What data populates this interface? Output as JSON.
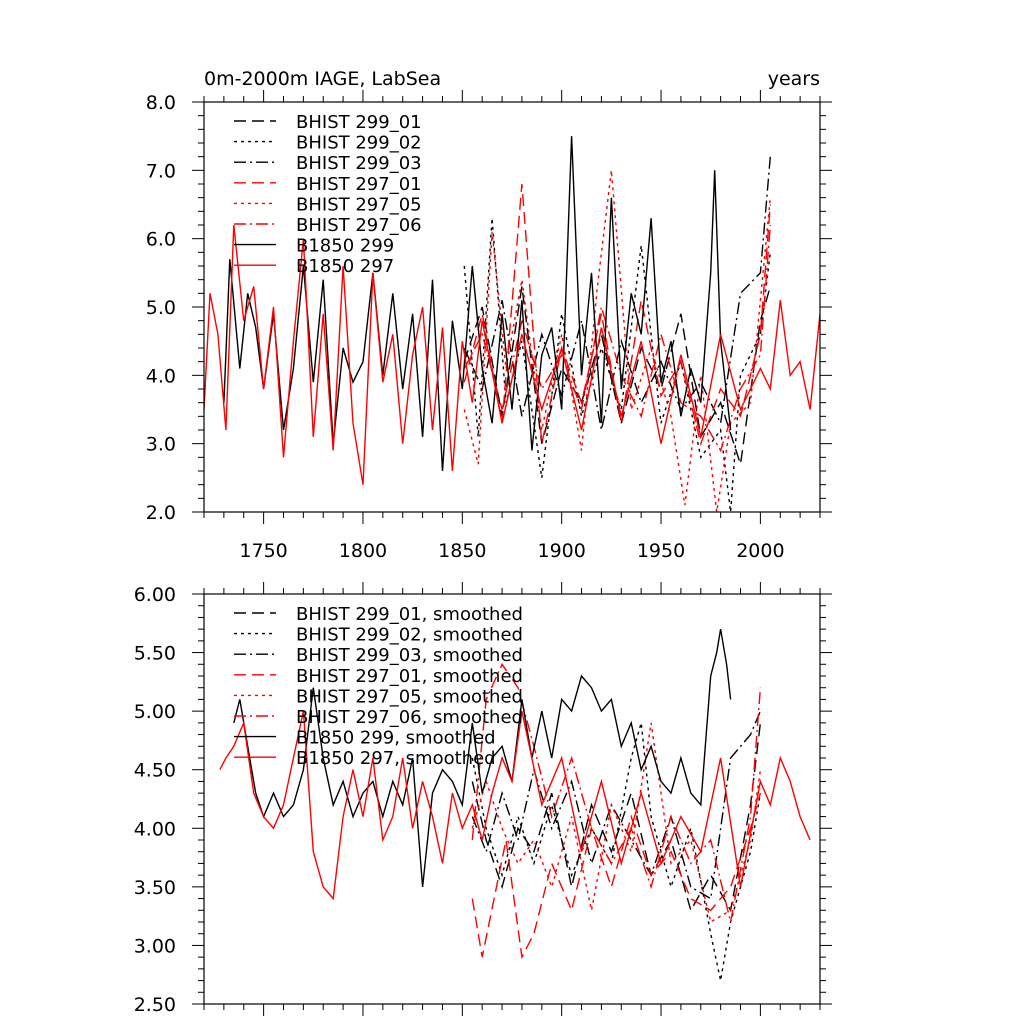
{
  "chart_data": [
    {
      "type": "line",
      "title_left": "0m-2000m IAGE, LabSea",
      "title_right": "years",
      "xlabel": "",
      "ylabel": "",
      "xlim": [
        1720,
        2030
      ],
      "ylim": [
        2.0,
        8.0
      ],
      "xticks": [
        1750,
        1800,
        1850,
        1900,
        1950,
        2000
      ],
      "xtick_labels": [
        "1750",
        "1800",
        "1850",
        "1900",
        "1950",
        "2000"
      ],
      "yticks": [
        2.0,
        3.0,
        4.0,
        5.0,
        6.0,
        7.0,
        8.0
      ],
      "ytick_labels": [
        "2.0",
        "3.0",
        "4.0",
        "5.0",
        "6.0",
        "7.0",
        "8.0"
      ],
      "legend_position": "top-left",
      "series": [
        {
          "name": "BHIST 299_01",
          "color": "#000000",
          "dash": "dash",
          "x": [
            1851,
            1860,
            1870,
            1880,
            1890,
            1900,
            1910,
            1920,
            1930,
            1940,
            1950,
            1960,
            1970,
            1980,
            1990,
            2000,
            2005
          ],
          "y": [
            4.2,
            5.0,
            3.4,
            5.3,
            3.0,
            4.1,
            3.6,
            4.6,
            3.3,
            4.4,
            3.8,
            4.9,
            3.1,
            3.6,
            2.7,
            4.8,
            5.3
          ]
        },
        {
          "name": "BHIST 299_02",
          "color": "#000000",
          "dash": "dot",
          "x": [
            1851,
            1858,
            1865,
            1872,
            1880,
            1890,
            1900,
            1910,
            1920,
            1930,
            1940,
            1950,
            1960,
            1970,
            1980,
            1985,
            1990,
            2000,
            2005
          ],
          "y": [
            5.6,
            3.1,
            6.3,
            3.6,
            4.5,
            2.5,
            4.9,
            3.4,
            4.4,
            3.5,
            5.9,
            3.3,
            4.2,
            2.8,
            3.2,
            2.0,
            4.0,
            4.6,
            5.8
          ]
        },
        {
          "name": "BHIST 299_03",
          "color": "#000000",
          "dash": "dashdot",
          "x": [
            1851,
            1860,
            1870,
            1880,
            1890,
            1900,
            1910,
            1920,
            1930,
            1940,
            1950,
            1960,
            1970,
            1980,
            1990,
            2000,
            2005
          ],
          "y": [
            4.4,
            3.8,
            5.1,
            3.4,
            4.6,
            3.7,
            4.8,
            3.2,
            4.5,
            3.6,
            4.2,
            3.5,
            3.9,
            3.3,
            5.2,
            5.5,
            7.2
          ]
        },
        {
          "name": "BHIST 297_01",
          "color": "#ff0000",
          "dash": "dash",
          "x": [
            1851,
            1860,
            1870,
            1880,
            1890,
            1900,
            1910,
            1920,
            1930,
            1940,
            1950,
            1960,
            1970,
            1980,
            1990,
            2000,
            2005
          ],
          "y": [
            3.9,
            4.9,
            3.3,
            6.8,
            3.0,
            4.4,
            3.6,
            4.9,
            3.3,
            5.1,
            3.7,
            4.2,
            3.0,
            3.8,
            3.4,
            4.6,
            6.5
          ]
        },
        {
          "name": "BHIST 297_05",
          "color": "#ff0000",
          "dash": "dot",
          "x": [
            1851,
            1858,
            1865,
            1872,
            1880,
            1890,
            1900,
            1910,
            1918,
            1925,
            1935,
            1945,
            1955,
            1962,
            1970,
            1978,
            1985,
            1995,
            2005
          ],
          "y": [
            3.5,
            2.7,
            6.1,
            4.1,
            5.4,
            3.2,
            4.6,
            2.9,
            5.3,
            7.0,
            3.5,
            4.4,
            3.4,
            2.1,
            4.0,
            2.0,
            3.3,
            3.6,
            6.6
          ]
        },
        {
          "name": "BHIST 297_06",
          "color": "#ff0000",
          "dash": "dashdot",
          "x": [
            1851,
            1860,
            1870,
            1880,
            1890,
            1900,
            1910,
            1920,
            1930,
            1940,
            1950,
            1960,
            1970,
            1980,
            1990,
            2000,
            2005
          ],
          "y": [
            4.1,
            4.6,
            3.5,
            4.8,
            3.8,
            4.3,
            3.5,
            5.0,
            4.0,
            3.4,
            4.6,
            3.6,
            3.4,
            2.9,
            3.8,
            4.3,
            6.2
          ]
        },
        {
          "name": "B1850 299",
          "color": "#000000",
          "dash": "solid",
          "x": [
            1730,
            1733,
            1738,
            1742,
            1746,
            1750,
            1755,
            1760,
            1765,
            1770,
            1775,
            1780,
            1785,
            1790,
            1795,
            1800,
            1805,
            1810,
            1815,
            1820,
            1825,
            1830,
            1835,
            1840,
            1845,
            1850,
            1855,
            1860,
            1865,
            1870,
            1875,
            1880,
            1885,
            1890,
            1895,
            1900,
            1905,
            1910,
            1915,
            1920,
            1925,
            1930,
            1935,
            1940,
            1945,
            1950,
            1955,
            1960,
            1965,
            1970,
            1975,
            1977,
            1980,
            1985
          ],
          "y": [
            3.6,
            5.7,
            4.1,
            5.2,
            4.7,
            3.8,
            4.9,
            3.2,
            4.1,
            5.6,
            3.9,
            5.4,
            3.0,
            4.4,
            3.9,
            4.2,
            5.5,
            4.0,
            5.2,
            3.8,
            4.9,
            3.1,
            5.4,
            2.6,
            4.8,
            3.8,
            5.6,
            4.1,
            3.3,
            4.9,
            3.5,
            5.1,
            2.9,
            4.3,
            4.7,
            3.5,
            7.5,
            4.0,
            5.5,
            3.3,
            6.6,
            3.8,
            5.2,
            4.6,
            6.3,
            3.9,
            4.5,
            3.4,
            4.1,
            3.6,
            5.5,
            7.0,
            4.5,
            3.2
          ]
        },
        {
          "name": "B1850 297",
          "color": "#ff0000",
          "dash": "solid",
          "x": [
            1720,
            1723,
            1727,
            1731,
            1735,
            1740,
            1745,
            1750,
            1755,
            1760,
            1765,
            1770,
            1775,
            1780,
            1785,
            1790,
            1795,
            1800,
            1805,
            1810,
            1815,
            1820,
            1825,
            1830,
            1835,
            1840,
            1845,
            1850,
            1855,
            1860,
            1870,
            1880,
            1890,
            1900,
            1910,
            1920,
            1930,
            1940,
            1950,
            1960,
            1970,
            1980,
            1990,
            2000,
            2005,
            2010,
            2015,
            2020,
            2025,
            2030
          ],
          "y": [
            3.5,
            5.2,
            4.6,
            3.2,
            6.2,
            4.8,
            5.3,
            3.8,
            5.0,
            2.8,
            4.5,
            6.0,
            3.1,
            4.9,
            2.9,
            5.6,
            3.3,
            2.4,
            5.5,
            3.9,
            4.6,
            3.0,
            4.3,
            5.0,
            3.2,
            4.7,
            2.6,
            4.5,
            3.6,
            4.8,
            3.3,
            4.6,
            3.5,
            4.4,
            3.2,
            4.7,
            3.4,
            4.5,
            3.0,
            4.3,
            3.1,
            4.6,
            3.5,
            4.1,
            3.8,
            5.1,
            4.0,
            4.2,
            3.5,
            4.9
          ]
        }
      ]
    },
    {
      "type": "line",
      "title": "",
      "xlabel": "",
      "ylabel": "",
      "xlim": [
        1720,
        2030
      ],
      "ylim": [
        2.5,
        6.0
      ],
      "xticks": [
        1750,
        1800,
        1850,
        1900,
        1950,
        2000
      ],
      "yticks": [
        2.5,
        3.0,
        3.5,
        4.0,
        4.5,
        5.0,
        5.5,
        6.0
      ],
      "ytick_labels": [
        "2.50",
        "3.00",
        "3.50",
        "4.00",
        "4.50",
        "5.00",
        "5.50",
        "6.00"
      ],
      "legend_position": "top-left",
      "series": [
        {
          "name": "BHIST 299_01, smoothed",
          "color": "#000000",
          "dash": "dash",
          "x": [
            1855,
            1862,
            1870,
            1878,
            1886,
            1895,
            1905,
            1915,
            1925,
            1935,
            1945,
            1955,
            1965,
            1975,
            1985,
            1995,
            2000
          ],
          "y": [
            4.4,
            3.9,
            3.5,
            4.0,
            3.8,
            4.3,
            3.5,
            4.2,
            3.8,
            4.3,
            3.6,
            3.9,
            3.3,
            3.6,
            3.3,
            4.2,
            4.9
          ]
        },
        {
          "name": "BHIST 299_02, smoothed",
          "color": "#000000",
          "dash": "dot",
          "x": [
            1855,
            1862,
            1870,
            1878,
            1886,
            1895,
            1905,
            1915,
            1925,
            1935,
            1940,
            1945,
            1955,
            1965,
            1975,
            1980,
            1985,
            1995,
            2000
          ],
          "y": [
            4.6,
            4.0,
            3.6,
            4.1,
            3.7,
            4.2,
            3.6,
            4.0,
            3.7,
            4.6,
            4.9,
            4.1,
            3.5,
            4.0,
            3.1,
            2.7,
            3.2,
            3.8,
            4.3
          ]
        },
        {
          "name": "BHIST 299_03, smoothed",
          "color": "#000000",
          "dash": "dashdot",
          "x": [
            1855,
            1862,
            1870,
            1878,
            1886,
            1895,
            1905,
            1915,
            1925,
            1935,
            1945,
            1955,
            1965,
            1975,
            1985,
            1995,
            2000
          ],
          "y": [
            4.1,
            3.8,
            4.3,
            3.9,
            4.5,
            4.0,
            4.4,
            3.7,
            4.2,
            3.9,
            3.6,
            4.1,
            3.5,
            3.4,
            4.6,
            4.8,
            5.0
          ]
        },
        {
          "name": "BHIST 297_01, smoothed",
          "color": "#ff0000",
          "dash": "dash",
          "x": [
            1855,
            1860,
            1866,
            1872,
            1880,
            1886,
            1895,
            1905,
            1915,
            1925,
            1935,
            1945,
            1955,
            1965,
            1975,
            1985,
            1995,
            2000
          ],
          "y": [
            3.4,
            2.9,
            3.4,
            3.9,
            2.9,
            3.1,
            3.7,
            3.3,
            4.0,
            3.5,
            4.1,
            3.6,
            3.8,
            3.4,
            3.3,
            3.5,
            4.0,
            4.3
          ]
        },
        {
          "name": "BHIST 297_05, smoothed",
          "color": "#ff0000",
          "dash": "dot",
          "x": [
            1855,
            1862,
            1870,
            1878,
            1886,
            1895,
            1905,
            1915,
            1925,
            1935,
            1945,
            1955,
            1965,
            1975,
            1985,
            1995,
            2000
          ],
          "y": [
            4.0,
            4.4,
            4.0,
            3.7,
            3.9,
            3.5,
            4.1,
            3.3,
            4.2,
            3.8,
            4.9,
            3.7,
            3.9,
            3.2,
            3.3,
            3.9,
            4.5
          ]
        },
        {
          "name": "BHIST 297_06, smoothed",
          "color": "#ff0000",
          "dash": "dashdot",
          "x": [
            1855,
            1862,
            1870,
            1878,
            1886,
            1895,
            1905,
            1915,
            1925,
            1935,
            1945,
            1955,
            1965,
            1975,
            1985,
            1995,
            2000
          ],
          "y": [
            3.9,
            5.1,
            5.4,
            5.2,
            4.7,
            4.1,
            4.6,
            4.0,
            3.7,
            4.0,
            3.5,
            4.1,
            3.7,
            3.9,
            3.2,
            4.1,
            5.2
          ]
        },
        {
          "name": "B1850 299, smoothed",
          "color": "#000000",
          "dash": "solid",
          "x": [
            1735,
            1738,
            1742,
            1746,
            1750,
            1755,
            1760,
            1765,
            1770,
            1775,
            1780,
            1785,
            1790,
            1795,
            1800,
            1805,
            1810,
            1815,
            1820,
            1825,
            1830,
            1835,
            1840,
            1845,
            1850,
            1855,
            1860,
            1865,
            1870,
            1875,
            1880,
            1885,
            1890,
            1895,
            1900,
            1905,
            1910,
            1915,
            1920,
            1925,
            1930,
            1935,
            1940,
            1945,
            1950,
            1955,
            1960,
            1965,
            1970,
            1975,
            1978,
            1980,
            1983,
            1985
          ],
          "y": [
            4.9,
            5.1,
            4.7,
            4.3,
            4.1,
            4.3,
            4.1,
            4.2,
            4.5,
            5.2,
            4.6,
            4.2,
            4.4,
            4.1,
            4.3,
            4.4,
            4.1,
            4.4,
            4.2,
            4.6,
            3.5,
            4.3,
            4.5,
            4.4,
            4.2,
            4.9,
            4.3,
            4.6,
            4.7,
            4.4,
            5.1,
            4.6,
            5.0,
            4.6,
            5.1,
            5.0,
            5.3,
            5.2,
            5.0,
            5.1,
            4.7,
            4.9,
            4.5,
            4.7,
            4.4,
            4.3,
            4.6,
            4.3,
            4.2,
            5.3,
            5.5,
            5.7,
            5.4,
            5.1
          ]
        },
        {
          "name": "B1850 297, smoothed",
          "color": "#ff0000",
          "dash": "solid",
          "x": [
            1728,
            1731,
            1735,
            1740,
            1745,
            1750,
            1755,
            1760,
            1765,
            1770,
            1775,
            1780,
            1785,
            1790,
            1795,
            1800,
            1805,
            1810,
            1815,
            1820,
            1825,
            1830,
            1835,
            1840,
            1845,
            1850,
            1855,
            1860,
            1865,
            1870,
            1875,
            1880,
            1890,
            1900,
            1910,
            1920,
            1930,
            1940,
            1950,
            1960,
            1970,
            1980,
            1990,
            2000,
            2005,
            2010,
            2015,
            2020,
            2025
          ],
          "y": [
            4.5,
            4.6,
            4.7,
            4.9,
            4.3,
            4.1,
            4.0,
            4.2,
            4.6,
            5.0,
            3.8,
            3.5,
            3.4,
            4.1,
            4.5,
            4.1,
            4.6,
            3.9,
            4.1,
            4.6,
            4.0,
            4.4,
            4.1,
            3.7,
            4.3,
            4.0,
            4.2,
            3.9,
            4.3,
            4.6,
            4.4,
            5.0,
            4.2,
            4.6,
            3.8,
            4.4,
            3.7,
            4.3,
            3.7,
            4.1,
            3.8,
            4.6,
            3.5,
            4.4,
            4.2,
            4.6,
            4.4,
            4.1,
            3.9
          ]
        }
      ]
    }
  ]
}
